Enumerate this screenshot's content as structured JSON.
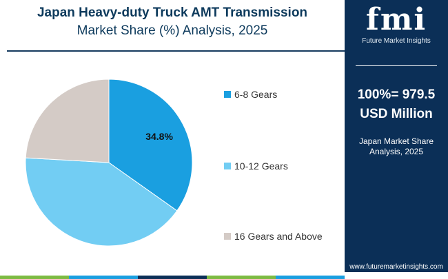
{
  "header": {
    "title_line1": "Japan Heavy-duty Truck AMT Transmission",
    "title_line2": "Market Share (%) Analysis, 2025"
  },
  "chart_data": {
    "type": "pie",
    "categories": [
      "6-8 Gears",
      "10-12 Gears",
      "16 Gears and Above"
    ],
    "values": [
      34.8,
      41.1,
      24.1
    ],
    "colors": [
      "#1a9fe0",
      "#72cdf3",
      "#d4cbc6"
    ],
    "data_labels": [
      "34.8%",
      "",
      ""
    ],
    "legend_position": "right"
  },
  "panel": {
    "logo_text": "fmi",
    "logo_subtitle": "Future Market Insights",
    "total_value": "100%= 979.5",
    "total_unit": "USD Million",
    "caption_line1": "Japan Market Share",
    "caption_line2": "Analysis, 2025",
    "url": "www.futuremarketinsights.com"
  },
  "colors": {
    "panel_bg": "#0b2f57",
    "title": "#0d3a5c",
    "strip": [
      "#7dbb42",
      "#1a9fe0",
      "#0b2f57",
      "#7dbb42",
      "#1a9fe0"
    ]
  }
}
